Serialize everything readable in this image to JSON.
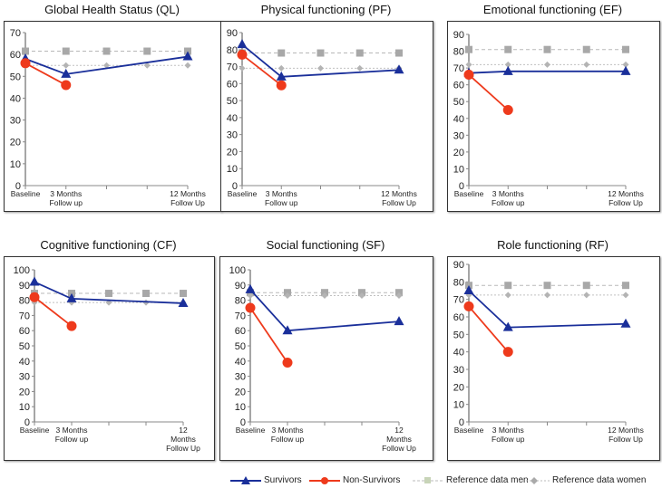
{
  "colors": {
    "survivors": "#1a2f9a",
    "non_survivors": "#ee3a1c",
    "ref_men": "#a8a8a8",
    "ref_women": "#b4b4b4"
  },
  "legend": {
    "survivors": "Survivors",
    "non_survivors": "Non-Survivors",
    "ref_men": "Reference data men",
    "ref_women": "Reference data women"
  },
  "chart_data": [
    {
      "type": "line",
      "title": "Global Health Status (QL)",
      "ylim": [
        0,
        70
      ],
      "yticks": [
        0,
        10,
        20,
        30,
        40,
        50,
        60,
        70
      ],
      "categories": [
        "Baseline",
        "3 Months Follow up",
        "",
        "",
        "12 Months Follow Up"
      ],
      "series": [
        {
          "name": "Survivors",
          "x": [
            0,
            1,
            4
          ],
          "values": [
            58,
            51,
            59
          ]
        },
        {
          "name": "Non-Survivors",
          "x": [
            0,
            1
          ],
          "values": [
            56,
            46
          ]
        },
        {
          "name": "Reference data men",
          "x": [
            0,
            1,
            2,
            3,
            4
          ],
          "values": [
            61.5,
            61.5,
            61.5,
            61.5,
            61.5
          ]
        },
        {
          "name": "Reference data women",
          "x": [
            0,
            1,
            2,
            3,
            4
          ],
          "values": [
            55,
            55,
            55,
            55,
            55
          ]
        }
      ]
    },
    {
      "type": "line",
      "title": "Physical functioning (PF)",
      "ylim": [
        0,
        90
      ],
      "yticks": [
        0,
        10,
        20,
        30,
        40,
        50,
        60,
        70,
        80,
        90
      ],
      "categories": [
        "Baseline",
        "3 Months Follow up",
        "",
        "",
        "12 Months Follow Up"
      ],
      "series": [
        {
          "name": "Survivors",
          "x": [
            0,
            1,
            4
          ],
          "values": [
            83,
            64,
            68
          ]
        },
        {
          "name": "Non-Survivors",
          "x": [
            0,
            1
          ],
          "values": [
            77,
            59
          ]
        },
        {
          "name": "Reference data men",
          "x": [
            0,
            1,
            2,
            3,
            4
          ],
          "values": [
            78,
            78,
            78,
            78,
            78
          ]
        },
        {
          "name": "Reference data women",
          "x": [
            0,
            1,
            2,
            3,
            4
          ],
          "values": [
            69,
            69,
            69,
            69,
            69
          ]
        }
      ]
    },
    {
      "type": "line",
      "title": "Emotional functioning (EF)",
      "ylim": [
        0,
        90
      ],
      "yticks": [
        0,
        10,
        20,
        30,
        40,
        50,
        60,
        70,
        80,
        90
      ],
      "categories": [
        "Baseline",
        "3 Months Follow up",
        "",
        "",
        "12 Months Follow Up"
      ],
      "series": [
        {
          "name": "Survivors",
          "x": [
            0,
            1,
            4
          ],
          "values": [
            67,
            68,
            68
          ]
        },
        {
          "name": "Non-Survivors",
          "x": [
            0,
            1
          ],
          "values": [
            66,
            45
          ]
        },
        {
          "name": "Reference data men",
          "x": [
            0,
            1,
            2,
            3,
            4
          ],
          "values": [
            81,
            81,
            81,
            81,
            81
          ]
        },
        {
          "name": "Reference data women",
          "x": [
            0,
            1,
            2,
            3,
            4
          ],
          "values": [
            72,
            72,
            72,
            72,
            72
          ]
        }
      ]
    },
    {
      "type": "line",
      "title": "Cognitive functioning (CF)",
      "ylim": [
        0,
        100
      ],
      "yticks": [
        0,
        10,
        20,
        30,
        40,
        50,
        60,
        70,
        80,
        90,
        100
      ],
      "categories": [
        "Baseline",
        "3 Months Follow up",
        "",
        "",
        "12 Months Follow Up"
      ],
      "series": [
        {
          "name": "Survivors",
          "x": [
            0,
            1,
            4
          ],
          "values": [
            92,
            81,
            78
          ]
        },
        {
          "name": "Non-Survivors",
          "x": [
            0,
            1
          ],
          "values": [
            82,
            63
          ]
        },
        {
          "name": "Reference data men",
          "x": [
            0,
            1,
            2,
            3,
            4
          ],
          "values": [
            84.5,
            84.5,
            84.5,
            84.5,
            84.5
          ]
        },
        {
          "name": "Reference data women",
          "x": [
            0,
            1,
            2,
            3,
            4
          ],
          "values": [
            78.5,
            78.5,
            78.5,
            78.5,
            78.5
          ]
        }
      ]
    },
    {
      "type": "line",
      "title": "Social functioning (SF)",
      "ylim": [
        0,
        100
      ],
      "yticks": [
        0,
        10,
        20,
        30,
        40,
        50,
        60,
        70,
        80,
        90,
        100
      ],
      "categories": [
        "Baseline",
        "3 Months Follow up",
        "",
        "",
        "12 Months Follow Up"
      ],
      "series": [
        {
          "name": "Survivors",
          "x": [
            0,
            1,
            4
          ],
          "values": [
            87,
            60,
            66
          ]
        },
        {
          "name": "Non-Survivors",
          "x": [
            0,
            1
          ],
          "values": [
            75,
            39
          ]
        },
        {
          "name": "Reference data men",
          "x": [
            0,
            1,
            2,
            3,
            4
          ],
          "values": [
            85,
            85,
            85,
            85,
            85
          ]
        },
        {
          "name": "Reference data women",
          "x": [
            0,
            1,
            2,
            3,
            4
          ],
          "values": [
            83,
            83,
            83,
            83,
            83
          ]
        }
      ]
    },
    {
      "type": "line",
      "title": "Role functioning (RF)",
      "ylim": [
        0,
        90
      ],
      "yticks": [
        0,
        10,
        20,
        30,
        40,
        50,
        60,
        70,
        80,
        90
      ],
      "categories": [
        "Baseline",
        "3 Months Follow up",
        "",
        "",
        "12 Months Follow Up"
      ],
      "series": [
        {
          "name": "Survivors",
          "x": [
            0,
            1,
            4
          ],
          "values": [
            75,
            54,
            56
          ]
        },
        {
          "name": "Non-Survivors",
          "x": [
            0,
            1
          ],
          "values": [
            66,
            40
          ]
        },
        {
          "name": "Reference data men",
          "x": [
            0,
            1,
            2,
            3,
            4
          ],
          "values": [
            78,
            78,
            78,
            78,
            78
          ]
        },
        {
          "name": "Reference data women",
          "x": [
            0,
            1,
            2,
            3,
            4
          ],
          "values": [
            72.5,
            72.5,
            72.5,
            72.5,
            72.5
          ]
        }
      ]
    }
  ]
}
